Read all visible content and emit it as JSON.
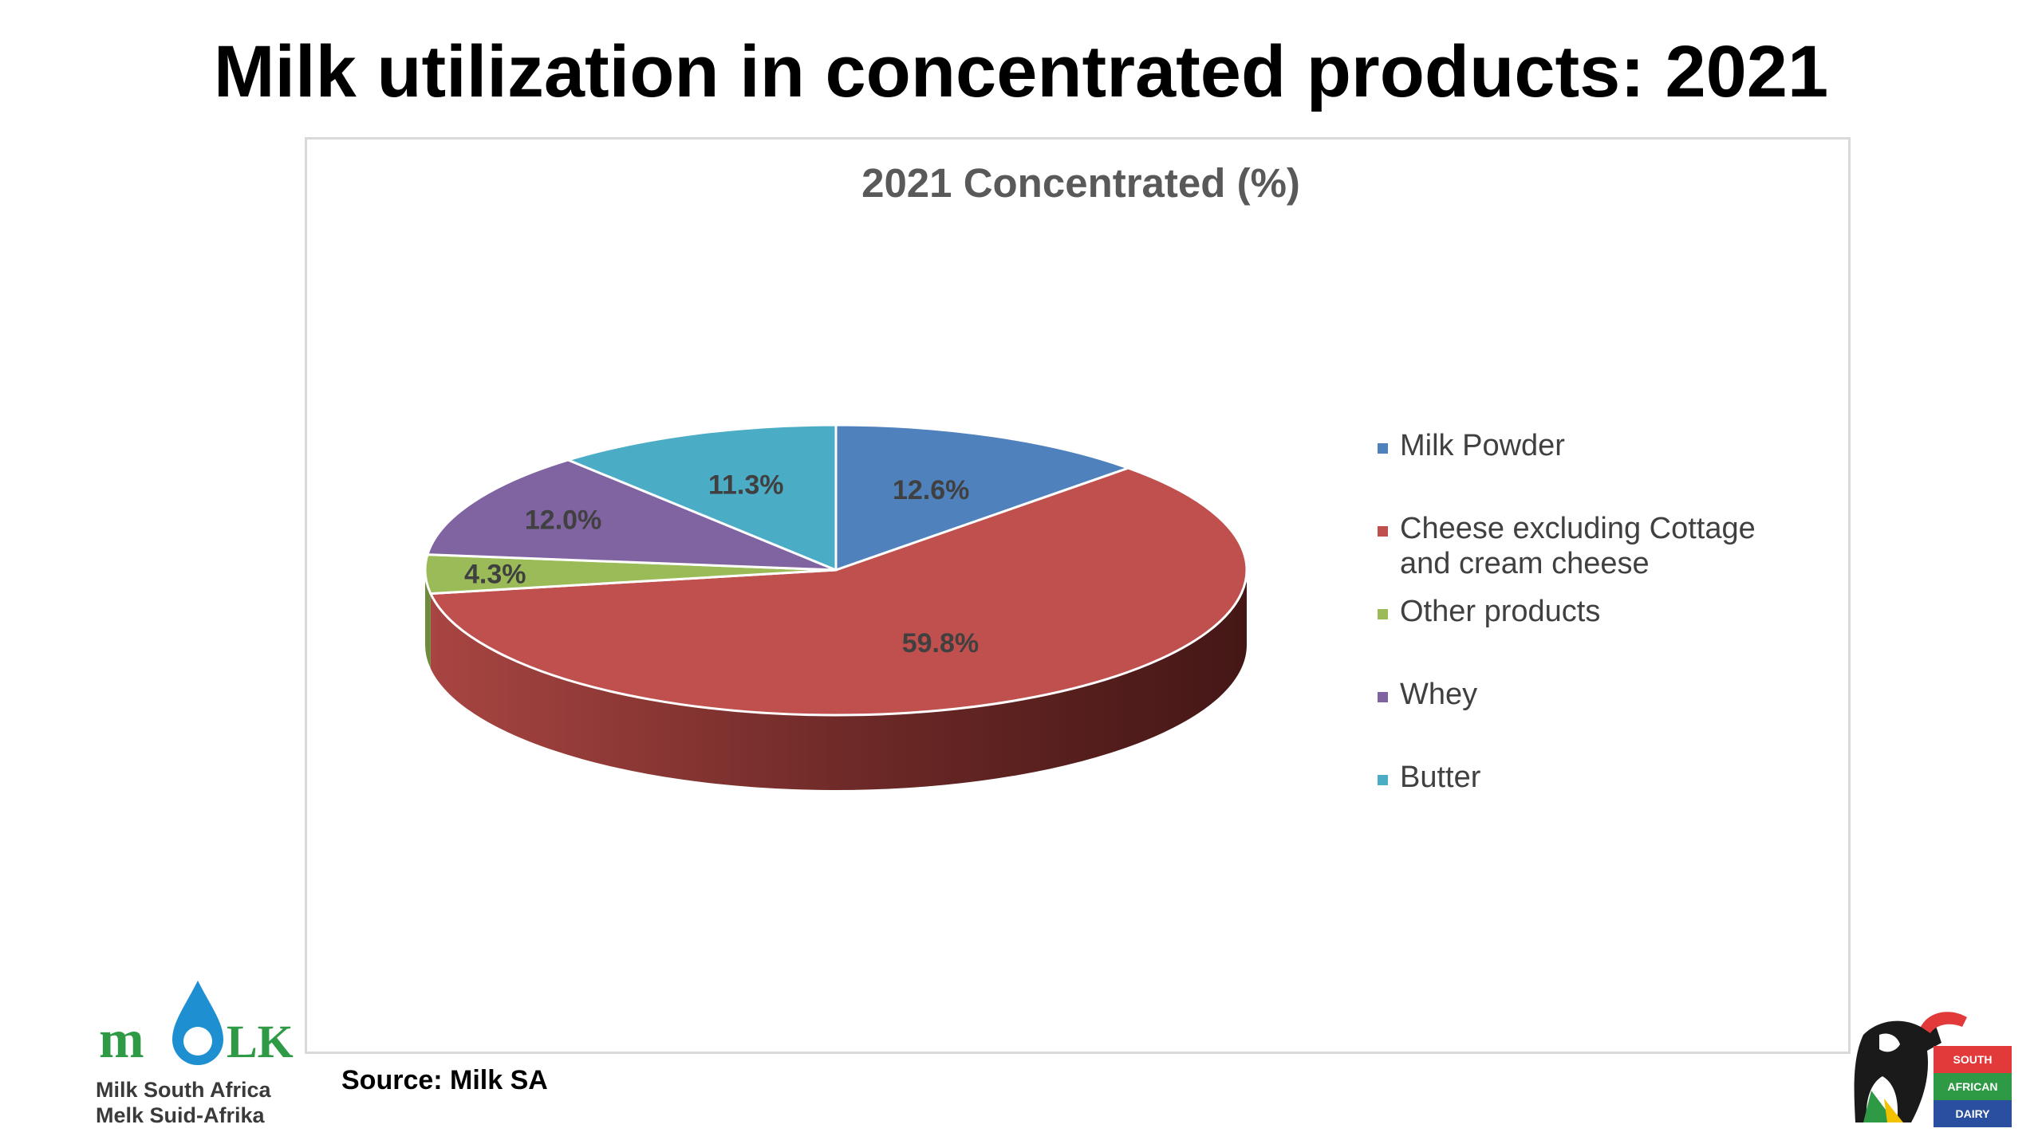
{
  "slide": {
    "title": "Milk utilization in concentrated products: 2021",
    "source": "Source: Milk SA"
  },
  "logo_left": {
    "name_en": "Milk South Africa",
    "name_af": "Melk Suid-Afrika",
    "wordmark_left": "m",
    "wordmark_right": "LK",
    "brand_color": "#2e9a45",
    "drop_color": "#1e8fd0"
  },
  "logo_right": {
    "badges": [
      "SOUTH",
      "AFRICAN",
      "DAIRY"
    ],
    "badge_colors": [
      "#e23a3a",
      "#2e9a45",
      "#2a4fa0"
    ]
  },
  "chart_data": {
    "type": "pie",
    "title": "2021 Concentrated (%)",
    "style": "3d-pie",
    "legend_position": "right",
    "categories": [
      "Milk Powder",
      "Cheese excluding Cottage and cream cheese",
      "Other products",
      "Whey",
      "Butter"
    ],
    "legend_lines": [
      [
        "Milk Powder"
      ],
      [
        "Cheese excluding Cottage",
        "and cream cheese"
      ],
      [
        "Other products"
      ],
      [
        "Whey"
      ],
      [
        "Butter"
      ]
    ],
    "values": [
      12.6,
      59.8,
      4.3,
      12.0,
      11.3
    ],
    "labels": [
      "12.6%",
      "59.8%",
      "4.3%",
      "12.0%",
      "11.3%"
    ],
    "colors": [
      "#4f81bd",
      "#c0504d",
      "#9bbb59",
      "#8064a2",
      "#4bacc6"
    ],
    "side_colors": [
      "#3b6391",
      "#7a2e2c",
      "#6e8a3c",
      "#5b4675",
      "#358197"
    ]
  }
}
